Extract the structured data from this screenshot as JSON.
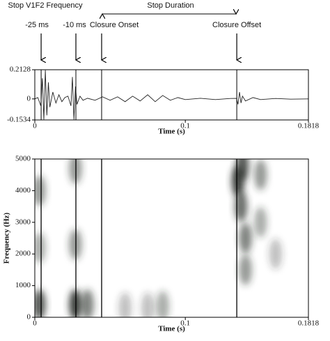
{
  "chart_data": [
    {
      "type": "line",
      "header": [
        "Stop V1F2 Frequency",
        "Stop Duration"
      ],
      "markers": [
        {
          "label": "-25 ms",
          "x": 0.0042
        },
        {
          "label": "-10 ms",
          "x": 0.0273
        },
        {
          "label": "Closure Onset",
          "x": 0.0444
        },
        {
          "label": "Closure Offset",
          "x": 0.1342
        }
      ],
      "x_label": "Time (s)",
      "x": [
        0,
        0.002,
        0.004,
        0.005,
        0.006,
        0.007,
        0.008,
        0.009,
        0.01,
        0.012,
        0.014,
        0.016,
        0.018,
        0.02,
        0.022,
        0.024,
        0.025,
        0.026,
        0.027,
        0.028,
        0.03,
        0.032,
        0.035,
        0.04,
        0.045,
        0.05,
        0.055,
        0.06,
        0.065,
        0.07,
        0.075,
        0.08,
        0.085,
        0.09,
        0.095,
        0.1,
        0.11,
        0.12,
        0.13,
        0.134,
        0.135,
        0.136,
        0.137,
        0.138,
        0.14,
        0.145,
        0.15,
        0.16,
        0.17,
        0.1818
      ],
      "values": [
        0,
        0.01,
        -0.05,
        0.15,
        -0.15,
        0.21,
        -0.12,
        0.12,
        -0.06,
        0.05,
        -0.03,
        0.03,
        -0.02,
        0.01,
        0.02,
        -0.05,
        0.16,
        -0.15,
        0.09,
        -0.04,
        0.02,
        -0.01,
        0.005,
        -0.01,
        0.015,
        -0.01,
        0.015,
        -0.02,
        0.02,
        -0.015,
        0.03,
        -0.02,
        0.025,
        -0.01,
        0.01,
        -0.005,
        0.005,
        -0.005,
        0.003,
        0.004,
        -0.04,
        0.05,
        -0.03,
        0.02,
        -0.015,
        0.01,
        -0.005,
        0.003,
        -0.002,
        0
      ],
      "color": "#222222",
      "xlim": [
        0,
        0.1818
      ],
      "xticks": [
        0,
        0.1,
        0.1818
      ],
      "ylim": [
        -0.1534,
        0.2128
      ],
      "yticks": [
        0.2128,
        0,
        -0.1534
      ]
    },
    {
      "type": "spectrogram",
      "x_label": "Time (s)",
      "y_label": "Frequency (Hz)",
      "x": [
        0.003,
        0.003,
        0.003,
        0.027,
        0.027,
        0.027,
        0.035,
        0.06,
        0.075,
        0.085,
        0.135,
        0.137,
        0.14,
        0.14,
        0.15,
        0.15,
        0.16,
        0.138
      ],
      "y": [
        400,
        2200,
        4000,
        400,
        2300,
        4700,
        400,
        300,
        300,
        350,
        4300,
        3500,
        2500,
        1500,
        4500,
        3000,
        2000,
        4800
      ],
      "values": [
        0.8,
        0.4,
        0.5,
        0.9,
        0.5,
        0.5,
        0.6,
        0.3,
        0.3,
        0.4,
        0.9,
        0.7,
        0.6,
        0.5,
        0.5,
        0.4,
        0.3,
        0.8
      ],
      "color": "#2a2f2a",
      "xlim": [
        0,
        0.1818
      ],
      "xticks": [
        0,
        0.1,
        0.1818
      ],
      "ylim": [
        0,
        5000
      ],
      "yticks": [
        0,
        1000,
        2000,
        3000,
        4000,
        5000
      ]
    }
  ]
}
